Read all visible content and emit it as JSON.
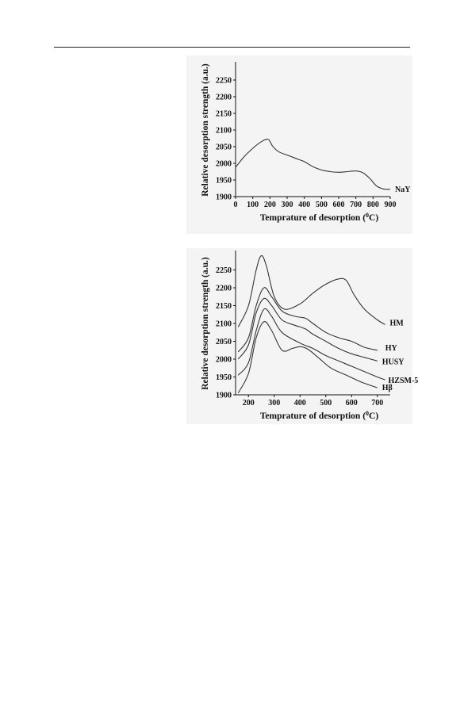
{
  "chart_data": [
    {
      "type": "line",
      "xlabel": "Temprature of desorption (",
      "xlabel_sup": "0",
      "xlabel_tail": "C)",
      "ylabel": "Relative desorption strength (a.u.)",
      "xlim": [
        0,
        900
      ],
      "ylim": [
        1900,
        2300
      ],
      "x_ticks": [
        "0",
        "100",
        "200",
        "300",
        "400",
        "500",
        "600",
        "700",
        "800",
        "900"
      ],
      "y_ticks": [
        "1900",
        "1950",
        "2000",
        "2050",
        "2100",
        "2150",
        "2200",
        "2250"
      ],
      "grid": false,
      "series": [
        {
          "name": "NaY",
          "x": [
            0,
            50,
            100,
            150,
            190,
            215,
            250,
            300,
            350,
            400,
            450,
            500,
            550,
            600,
            650,
            700,
            740,
            780,
            820,
            860,
            900
          ],
          "y": [
            1988,
            2020,
            2045,
            2065,
            2072,
            2052,
            2035,
            2025,
            2015,
            2005,
            1990,
            1980,
            1975,
            1973,
            1975,
            1977,
            1972,
            1955,
            1932,
            1923,
            1922
          ]
        }
      ]
    },
    {
      "type": "line",
      "xlabel": "Temprature of desorption (",
      "xlabel_sup": "0",
      "xlabel_tail": "C)",
      "ylabel": "Relative desorption strength (a.u.)",
      "xlim": [
        150,
        750
      ],
      "ylim": [
        1900,
        2300
      ],
      "x_ticks": [
        "200",
        "300",
        "400",
        "500",
        "600",
        "700"
      ],
      "x_tick_values": [
        200,
        300,
        400,
        500,
        600,
        700
      ],
      "y_ticks": [
        "1900",
        "1950",
        "2000",
        "2050",
        "2100",
        "2150",
        "2200",
        "2250"
      ],
      "grid": false,
      "series": [
        {
          "name": "HM",
          "x": [
            160,
            200,
            230,
            250,
            270,
            300,
            340,
            400,
            450,
            500,
            550,
            580,
            610,
            650,
            700,
            730
          ],
          "y": [
            2090,
            2150,
            2250,
            2290,
            2260,
            2175,
            2140,
            2155,
            2185,
            2210,
            2225,
            2220,
            2180,
            2140,
            2110,
            2097
          ]
        },
        {
          "name": "HY",
          "x": [
            160,
            200,
            230,
            260,
            290,
            330,
            380,
            420,
            450,
            500,
            550,
            600,
            650,
            700
          ],
          "y": [
            2020,
            2060,
            2150,
            2200,
            2175,
            2135,
            2120,
            2115,
            2100,
            2075,
            2060,
            2050,
            2033,
            2025
          ]
        },
        {
          "name": "HUSY",
          "x": [
            160,
            200,
            230,
            260,
            290,
            330,
            380,
            420,
            450,
            500,
            550,
            600,
            650,
            700
          ],
          "y": [
            2000,
            2040,
            2130,
            2170,
            2150,
            2110,
            2095,
            2085,
            2070,
            2050,
            2030,
            2015,
            2005,
            1995
          ]
        },
        {
          "name": "HZSM-5",
          "x": [
            160,
            200,
            230,
            260,
            290,
            330,
            400,
            450,
            500,
            550,
            600,
            650,
            700,
            730
          ],
          "y": [
            1955,
            1990,
            2080,
            2140,
            2120,
            2075,
            2045,
            2030,
            2010,
            1995,
            1980,
            1965,
            1950,
            1942
          ]
        },
        {
          "name": "Hβ",
          "x": [
            160,
            200,
            230,
            260,
            290,
            330,
            370,
            400,
            430,
            470,
            520,
            580,
            640,
            700
          ],
          "y": [
            1905,
            1960,
            2060,
            2105,
            2080,
            2025,
            2030,
            2035,
            2028,
            2005,
            1975,
            1955,
            1935,
            1920
          ]
        }
      ]
    }
  ]
}
